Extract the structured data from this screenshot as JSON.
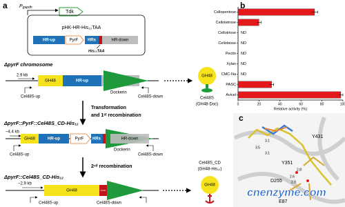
{
  "panel_a": {
    "label": "a",
    "promoter": {
      "text": "P",
      "sub": "gapdh"
    },
    "tdk": "Tdk",
    "plasmid": "pHK-HR-His₁₂TAA",
    "plasmid_parts": [
      "HR-up",
      "PyrF",
      "HRs",
      "HR-down"
    ],
    "tag": "His₁₂TAA",
    "strains": [
      {
        "name": "ΔpyrF chromosome",
        "size": "2.9 kb",
        "parts": [
          "GH48",
          "HR-up"
        ],
        "dockerin": "Dockerin",
        "primers": [
          "Cel48S-up",
          "Cel48S-down"
        ]
      },
      {
        "name": "ΔpyrF::PyrF::Cel48S_CD-His₁₂",
        "size": "~4.4 kb",
        "parts": [
          "GH48",
          "HR-up",
          "PyrF",
          "HRs",
          "HR-down"
        ],
        "dockerin": "Dockerin",
        "primers": [
          "Cel48S-up",
          "Cel48S-down"
        ]
      },
      {
        "name": "ΔpyrF::Cel48S_CD-His₁₂",
        "size": "~2.9 kb",
        "parts": [
          "GH48",
          "STOP"
        ],
        "primers": [
          "Cel48S-up",
          "Cel48S-down"
        ]
      }
    ],
    "steps": [
      [
        "Transformation",
        "and 1ˢᵗ recombination"
      ],
      [
        "2ⁿᵈ recombination"
      ]
    ],
    "products": [
      {
        "domain": "GH48",
        "name": "Cel48S",
        "detail": "(GH48-Doc)"
      },
      {
        "domain": "GH48",
        "name": "Cel48S_CD",
        "detail": "(GH48-His₁₂)"
      }
    ]
  },
  "chart_data": {
    "type": "bar",
    "orientation": "horizontal",
    "label": "b",
    "categories": [
      "Cellopentose",
      "Cellotetrose",
      "Cellotriose",
      "Cellobiose",
      "Pectin",
      "Xylan",
      "CMC-Na",
      "PASC",
      "Avicel"
    ],
    "values": [
      73,
      20,
      null,
      null,
      null,
      null,
      null,
      32,
      98
    ],
    "errors": [
      3,
      2,
      null,
      null,
      null,
      null,
      null,
      2,
      2
    ],
    "value_labels": [
      null,
      null,
      "ND",
      "ND",
      "ND",
      "ND",
      "ND",
      null,
      null
    ],
    "color": "#e3191c",
    "xlabel": "Relative activity (%)",
    "xlim": [
      0,
      100
    ],
    "xticks": [
      0,
      20,
      40,
      60,
      80,
      100
    ]
  },
  "panel_c": {
    "label": "c",
    "residues": [
      "Y431",
      "Y351",
      "D255",
      "E87"
    ],
    "distances": [
      "3.1",
      "3.5",
      "3.1",
      "2.8",
      "2.6",
      "2.9"
    ]
  },
  "watermark": "cnenzyme.com"
}
